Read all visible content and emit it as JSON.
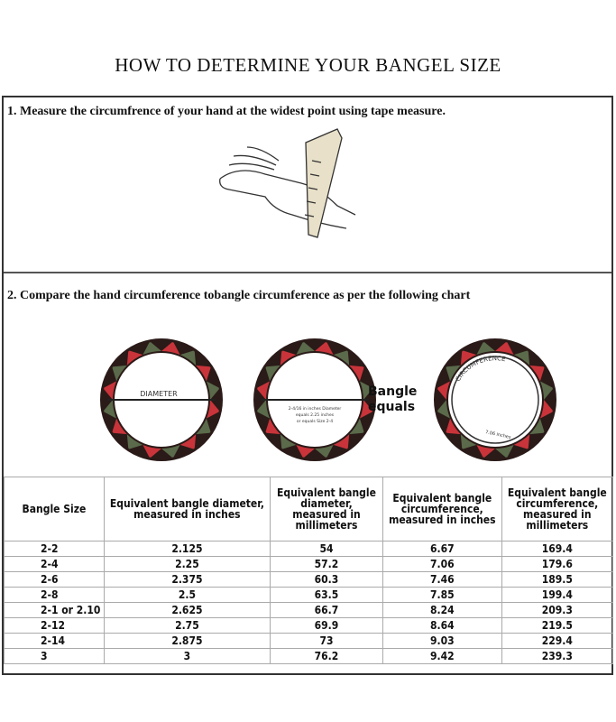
{
  "title": "HOW TO DETERMINE YOUR BANGEL SIZE",
  "step1": "1. Measure the circumfrence of your hand at the widest point using tape measure.",
  "step2": "2. Compare the hand circumference tobangle circumference as per the following chart",
  "diagram": {
    "diameter_label": "DIAMETER",
    "example_note": [
      "2-4/16 in inches Diameter",
      "equals 2.25 inches",
      "or equals Size 2-4"
    ],
    "bangle_equals": [
      "Bangle",
      "equals"
    ],
    "circumference_label": "CIRCUMFERENCE",
    "circumference_value": "7.06 inches",
    "colors": {
      "red": "#c8343a",
      "dark": "#2a1a18",
      "green": "#5a6a4a"
    }
  },
  "table": {
    "headers": [
      "Bangle Size",
      "Equivalent bangle diameter, measured in inches",
      "Equivalent bangle diameter, measured in millimeters",
      "Equivalent bangle circumference, measured in inches",
      "Equivalent bangle circumference, measured in millimeters"
    ],
    "rows": [
      [
        "2-2",
        "2.125",
        "54",
        "6.67",
        "169.4"
      ],
      [
        "2-4",
        "2.25",
        "57.2",
        "7.06",
        "179.6"
      ],
      [
        "2-6",
        "2.375",
        "60.3",
        "7.46",
        "189.5"
      ],
      [
        "2-8",
        "2.5",
        "63.5",
        "7.85",
        "199.4"
      ],
      [
        "2-1 or 2.10",
        "2.625",
        "66.7",
        "8.24",
        "209.3"
      ],
      [
        "2-12",
        "2.75",
        "69.9",
        "8.64",
        "219.5"
      ],
      [
        "2-14",
        "2.875",
        "73",
        "9.03",
        "229.4"
      ],
      [
        "3",
        "3",
        "76.2",
        "9.42",
        "239.3"
      ]
    ]
  }
}
